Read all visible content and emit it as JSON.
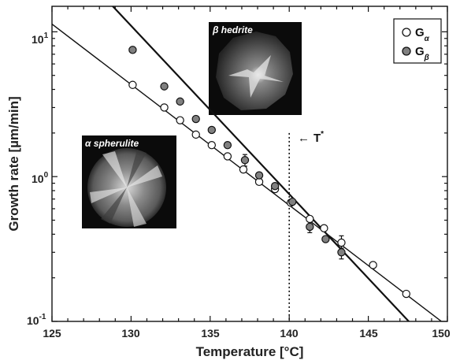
{
  "chart_data": {
    "type": "scatter",
    "title": "",
    "xlabel": "Temperature [°C]",
    "ylabel": "Growth rate [µm/min]",
    "xlim": [
      125,
      150
    ],
    "ylim": [
      0.1,
      15
    ],
    "yscale": "log",
    "x_ticks": [
      125,
      130,
      135,
      140,
      145,
      150
    ],
    "x_tick_labels": [
      "125",
      "130",
      "135",
      "140",
      "145",
      "150"
    ],
    "y_ticks": [
      0.1,
      1,
      10
    ],
    "y_tick_labels": [
      "10",
      "10",
      "10"
    ],
    "y_tick_exponents": [
      "-1",
      "0",
      "1"
    ],
    "grid": false,
    "legend_position": "top-right",
    "series": [
      {
        "name": "G",
        "subscript": "α",
        "marker": "open-circle",
        "color": "#ffffff",
        "x": [
          130.1,
          132.1,
          133.1,
          134.1,
          135.1,
          136.1,
          137.1,
          138.1,
          139.1,
          140.1,
          141.3,
          142.2,
          143.3,
          145.3,
          147.4
        ],
        "y": [
          4.3,
          3.0,
          2.45,
          1.95,
          1.65,
          1.38,
          1.12,
          0.92,
          0.82,
          0.66,
          0.51,
          0.44,
          0.35,
          0.245,
          0.155
        ],
        "fit": {
          "x": [
            125,
            150
          ],
          "y": [
            11.3,
            0.093
          ]
        }
      },
      {
        "name": "G",
        "subscript": "β",
        "marker": "filled-circle",
        "color": "#808080",
        "x": [
          130.1,
          132.1,
          133.1,
          134.1,
          135.1,
          136.1,
          137.2,
          138.1,
          139.1,
          140.2,
          141.3,
          142.3,
          143.3
        ],
        "y": [
          7.5,
          4.2,
          3.3,
          2.5,
          2.1,
          1.65,
          1.3,
          1.02,
          0.86,
          0.67,
          0.45,
          0.37,
          0.3
        ],
        "fit": {
          "x": [
            125,
            150
          ],
          "y": [
            42,
            0.052
          ]
        }
      }
    ],
    "reference_line": {
      "x": 140,
      "y_top": 2.0,
      "style": "dotted",
      "label": "T",
      "label_superscript": "*",
      "arrow": "←"
    },
    "insets": [
      {
        "label": "α spherulite",
        "shape": "circle"
      },
      {
        "label": "β hedrite",
        "shape": "polygon"
      }
    ],
    "error_bars": [
      {
        "series": "G",
        "subscript": "β",
        "x": 137.2,
        "y_low": 1.18,
        "y_high": 1.42
      },
      {
        "series": "G",
        "subscript": "β",
        "x": 141.3,
        "y_low": 0.41,
        "y_high": 0.5
      },
      {
        "series": "G",
        "subscript": "β",
        "x": 143.3,
        "y_low": 0.27,
        "y_high": 0.34
      },
      {
        "series": "G",
        "subscript": "α",
        "x": 143.3,
        "y_low": 0.32,
        "y_high": 0.39
      }
    ]
  }
}
